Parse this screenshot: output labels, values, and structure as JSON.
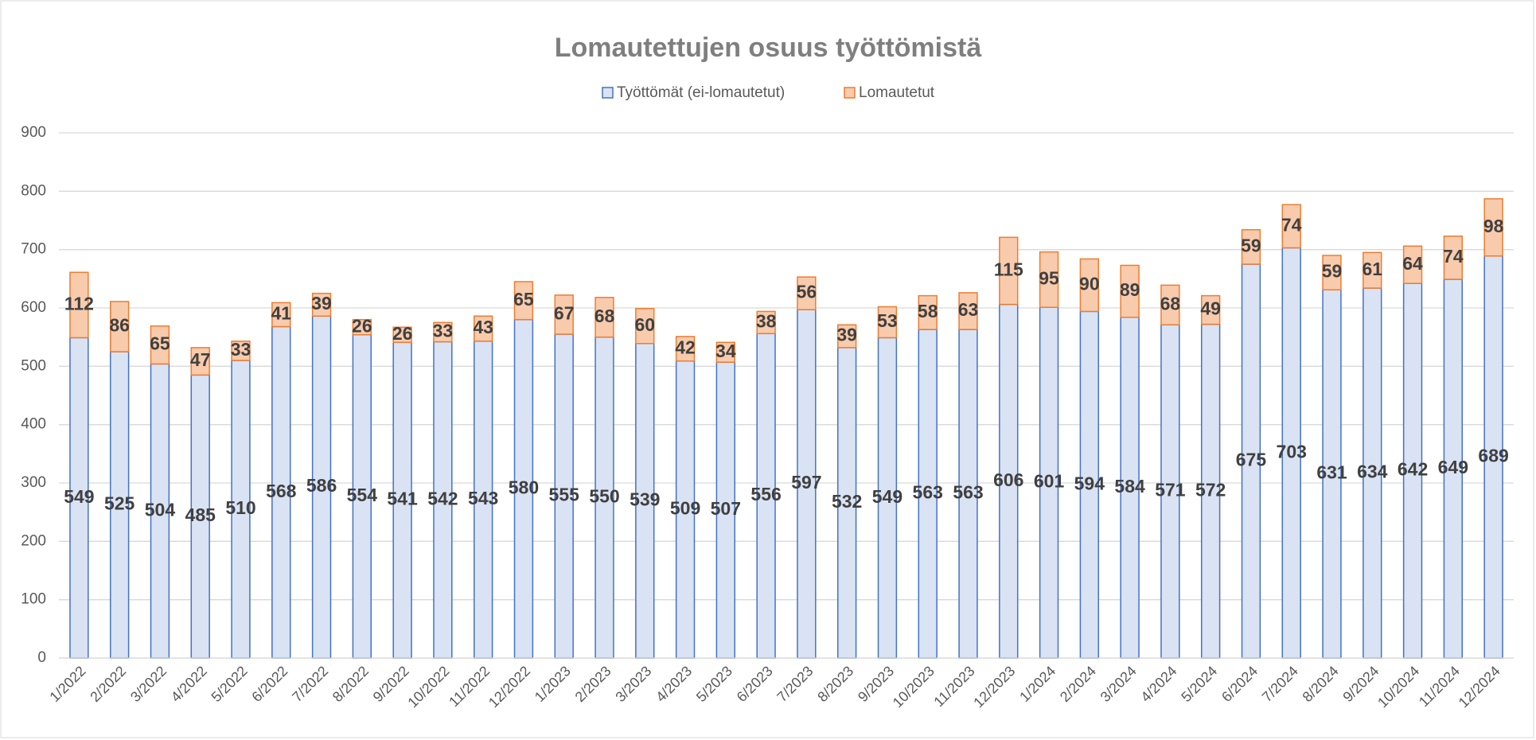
{
  "chart_data": {
    "type": "stacked_bar",
    "title": "Lomautettujen osuus työttömistä",
    "categories": [
      "1/2022",
      "2/2022",
      "3/2022",
      "4/2022",
      "5/2022",
      "6/2022",
      "7/2022",
      "8/2022",
      "9/2022",
      "10/2022",
      "11/2022",
      "12/2022",
      "1/2023",
      "2/2023",
      "3/2023",
      "4/2023",
      "5/2023",
      "6/2023",
      "7/2023",
      "8/2023",
      "9/2023",
      "10/2023",
      "11/2023",
      "12/2023",
      "1/2024",
      "2/2024",
      "3/2024",
      "4/2024",
      "5/2024",
      "6/2024",
      "7/2024",
      "8/2024",
      "9/2024",
      "10/2024",
      "11/2024",
      "12/2024"
    ],
    "series": [
      {
        "name": "Työttömät (ei-lomautetut)",
        "color": "#dae3f3",
        "edge": "#4472c4",
        "values": [
          549,
          525,
          504,
          485,
          510,
          568,
          586,
          554,
          541,
          542,
          543,
          580,
          555,
          550,
          539,
          509,
          507,
          556,
          597,
          532,
          549,
          563,
          563,
          606,
          601,
          594,
          584,
          571,
          572,
          675,
          703,
          631,
          634,
          642,
          649,
          689
        ]
      },
      {
        "name": "Lomautetut",
        "color": "#f8cbad",
        "edge": "#ed7d31",
        "values": [
          112,
          86,
          65,
          47,
          33,
          41,
          39,
          26,
          26,
          33,
          43,
          65,
          67,
          68,
          60,
          42,
          34,
          38,
          56,
          39,
          53,
          58,
          63,
          115,
          95,
          90,
          89,
          68,
          49,
          59,
          74,
          59,
          61,
          64,
          74,
          98
        ]
      }
    ],
    "ylim": [
      0,
      900
    ],
    "yticks": [
      0,
      100,
      200,
      300,
      400,
      500,
      600,
      700,
      800,
      900
    ],
    "grid": true,
    "legend": "top"
  }
}
